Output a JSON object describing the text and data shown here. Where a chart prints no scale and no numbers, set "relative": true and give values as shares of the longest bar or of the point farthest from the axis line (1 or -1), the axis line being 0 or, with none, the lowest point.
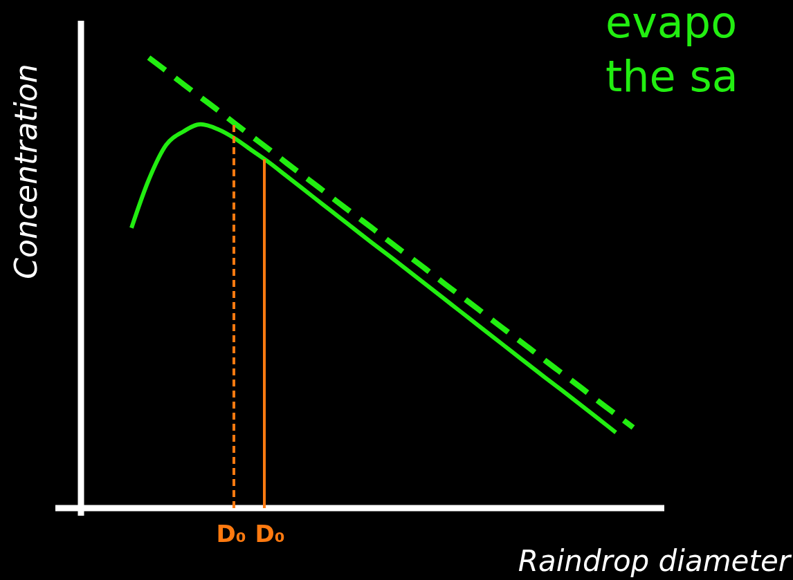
{
  "chart_data": {
    "type": "line",
    "relative": true,
    "ylabel": "Concentration",
    "xlabel": "Raindrop diameter",
    "categories": [
      null,
      null,
      null,
      null,
      null,
      null,
      null,
      null,
      null,
      null,
      null,
      null,
      null,
      null,
      null,
      null,
      null,
      null,
      null,
      null,
      null,
      null,
      null,
      null,
      null,
      null,
      null,
      null,
      null,
      null
    ],
    "series": [
      {
        "color": "#22ee11",
        "line_style": "solid",
        "values": [
          0.622,
          0.729,
          0.806,
          0.836,
          0.852,
          0.841,
          0.82,
          0.793,
          0.766,
          0.736,
          0.706,
          0.676,
          0.646,
          0.616,
          0.586,
          0.557,
          0.527,
          0.497,
          0.467,
          0.437,
          0.407,
          0.377,
          0.347,
          0.317,
          0.287,
          0.258,
          0.228,
          0.198,
          0.168,
          null
        ]
      },
      {
        "color": "#22ee11",
        "line_style": "dashed",
        "values": [
          null,
          1.0,
          0.971,
          0.941,
          0.912,
          0.883,
          0.853,
          0.824,
          0.795,
          0.765,
          0.736,
          0.707,
          0.677,
          0.648,
          0.619,
          0.589,
          0.56,
          0.531,
          0.501,
          0.472,
          0.443,
          0.413,
          0.384,
          0.355,
          0.325,
          0.296,
          0.267,
          0.237,
          0.208,
          0.179
        ]
      }
    ],
    "annotations": [
      "evapo",
      "the sa",
      "D₀",
      "D₀"
    ]
  }
}
